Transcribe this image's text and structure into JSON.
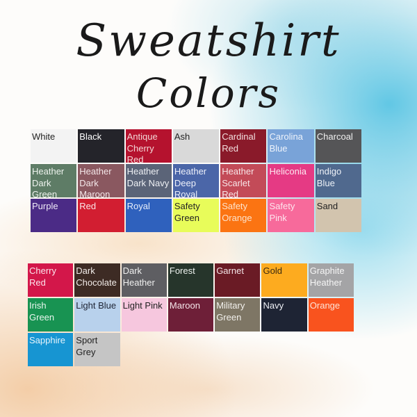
{
  "title": {
    "line1": "Sweatshirt",
    "line2": "Colors"
  },
  "group1": [
    {
      "name": "White",
      "color": "#f3f3f3",
      "text": "#222222"
    },
    {
      "name": "Black",
      "color": "#24242a",
      "text": "#ffffff"
    },
    {
      "name": "Antique Cherry Red",
      "color": "#b5122e",
      "text": "#f3d6d6"
    },
    {
      "name": "Ash",
      "color": "#d9d9d9",
      "text": "#222222"
    },
    {
      "name": "Cardinal Red",
      "color": "#8a1a2a",
      "text": "#f1dede"
    },
    {
      "name": "Carolina Blue",
      "color": "#79a3d8",
      "text": "#eef3fb"
    },
    {
      "name": "Charcoal",
      "color": "#555557",
      "text": "#f0f0f0"
    },
    {
      "name": "Heather Dark Green",
      "color": "#5e7c66",
      "text": "#eef3ee"
    },
    {
      "name": "Heather Dark Maroon",
      "color": "#8a5860",
      "text": "#f4e7e9"
    },
    {
      "name": "Heather Dark Navy",
      "color": "#5b6478",
      "text": "#eef0f4"
    },
    {
      "name": "Heather Deep Royal",
      "color": "#4b66a8",
      "text": "#eef1fa"
    },
    {
      "name": "Heather Scarlet Red",
      "color": "#c34b58",
      "text": "#f8e6e8"
    },
    {
      "name": "Heliconia",
      "color": "#e53a84",
      "text": "#fde8f1"
    },
    {
      "name": "Indigo Blue",
      "color": "#50698e",
      "text": "#eef2f8"
    },
    {
      "name": "Purple",
      "color": "#4b2b86",
      "text": "#f0ebf8"
    },
    {
      "name": "Red",
      "color": "#d21e31",
      "text": "#fbe6e8"
    },
    {
      "name": "Royal",
      "color": "#2f61bd",
      "text": "#eaf0fb"
    },
    {
      "name": "Safety Green",
      "color": "#e8fc5a",
      "text": "#222222"
    },
    {
      "name": "Safety Orange",
      "color": "#fb7412",
      "text": "#fde3cc"
    },
    {
      "name": "Safety Pink",
      "color": "#f76a9b",
      "text": "#fde5ee"
    },
    {
      "name": "Sand",
      "color": "#d2c4ae",
      "text": "#222222"
    }
  ],
  "group2": [
    {
      "name": "Cherry Red",
      "color": "#d3174a",
      "text": "#fbe5ec"
    },
    {
      "name": "Dark Chocolate",
      "color": "#3d2b24",
      "text": "#f2ece9"
    },
    {
      "name": "Dark Heather",
      "color": "#5e5e62",
      "text": "#f0f0f0"
    },
    {
      "name": "Forest",
      "color": "#26352b",
      "text": "#eef3ef"
    },
    {
      "name": "Garnet",
      "color": "#6a1b25",
      "text": "#f4e6e8"
    },
    {
      "name": "Gold",
      "color": "#fdab1f",
      "text": "#3a2a10"
    },
    {
      "name": "Graphite Heather",
      "color": "#a4a4a6",
      "text": "#f5f5f5"
    },
    {
      "name": "Irish Green",
      "color": "#189352",
      "text": "#eaf7ef"
    },
    {
      "name": "Light Blue",
      "color": "#b8d1ec",
      "text": "#1e2434"
    },
    {
      "name": "Light Pink",
      "color": "#f6c7de",
      "text": "#222222"
    },
    {
      "name": "Maroon",
      "color": "#6e1f38",
      "text": "#f5e6ea"
    },
    {
      "name": "Military Green",
      "color": "#7e7665",
      "text": "#f2f0ec"
    },
    {
      "name": "Navy",
      "color": "#1e2434",
      "text": "#eef0f5"
    },
    {
      "name": "Orange",
      "color": "#f9531e",
      "text": "#fde4d8"
    },
    {
      "name": "Sapphire",
      "color": "#1795d2",
      "text": "#e6f4fb"
    },
    {
      "name": "Sport Grey",
      "color": "#c5c5c5",
      "text": "#222222"
    }
  ]
}
